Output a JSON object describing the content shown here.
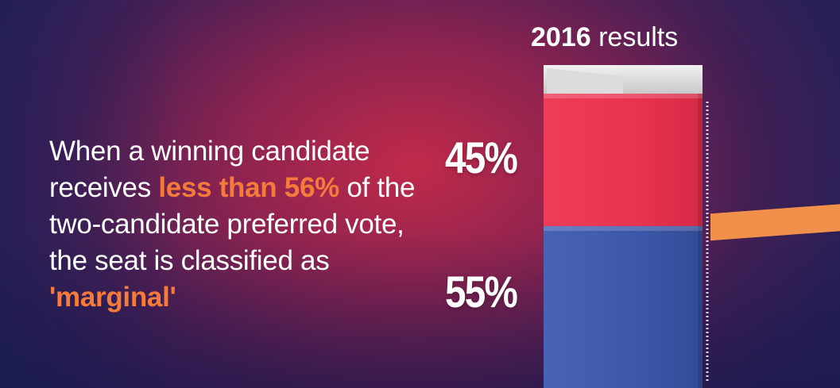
{
  "message": {
    "part1": "When a winning candidate receives ",
    "highlight1": "less than 56%",
    "part2": " of the two-candidate preferred vote, the seat is classified as ",
    "highlight2": "'marginal'"
  },
  "chart_data": {
    "type": "bar",
    "title_year": "2016",
    "title_rest": " results",
    "series": [
      {
        "value": 45,
        "label": "45%",
        "color": "#e8334f"
      },
      {
        "value": 55,
        "label": "55%",
        "color": "#3d56a8"
      }
    ],
    "threshold": {
      "value": 56,
      "color": "#f0904a"
    },
    "ylim": [
      0,
      100
    ]
  }
}
